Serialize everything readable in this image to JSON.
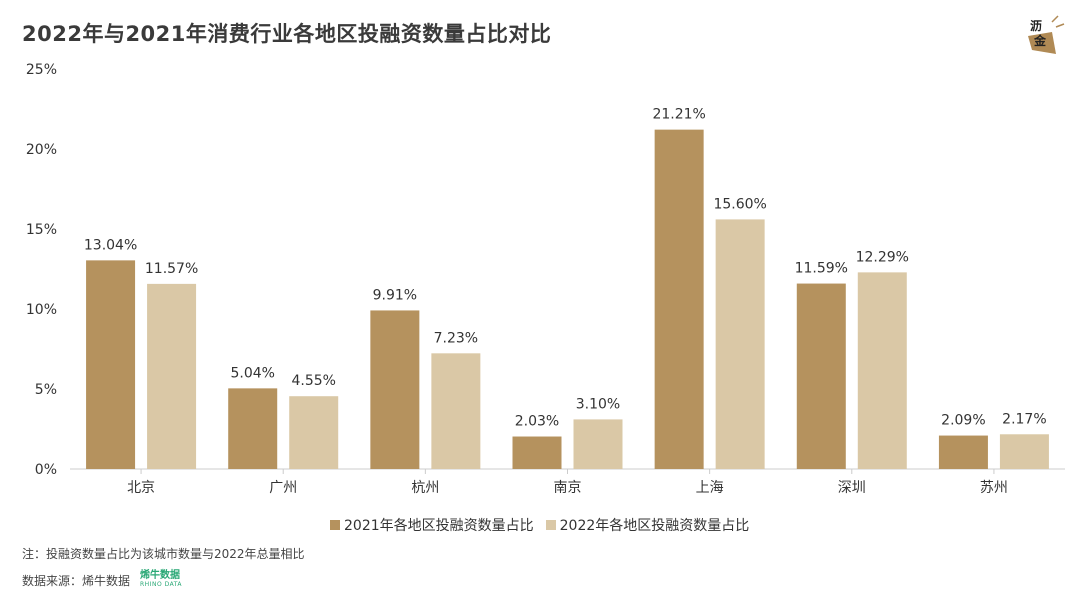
{
  "title": "2022年与2021年消费行业各地区投融资数量占比对比",
  "brand": {
    "line1": "沥",
    "line2": "金"
  },
  "colors": {
    "series1": "#b5925e",
    "series2": "#dac8a6",
    "axis": "#cccccc"
  },
  "chart_data": {
    "type": "bar",
    "categories": [
      "北京",
      "广州",
      "杭州",
      "南京",
      "上海",
      "深圳",
      "苏州"
    ],
    "series": [
      {
        "name": "2021年各地区投融资数量占比",
        "values": [
          13.04,
          5.04,
          9.91,
          2.03,
          21.21,
          11.59,
          2.09
        ]
      },
      {
        "name": "2022年各地区投融资数量占比",
        "values": [
          11.57,
          4.55,
          7.23,
          3.1,
          15.6,
          12.29,
          2.17
        ]
      }
    ],
    "data_labels": [
      [
        "13.04%",
        "5.04%",
        "9.91%",
        "2.03%",
        "21.21%",
        "11.59%",
        "2.09%"
      ],
      [
        "11.57%",
        "4.55%",
        "7.23%",
        "3.10%",
        "15.60%",
        "12.29%",
        "2.17%"
      ]
    ],
    "yticks": [
      "0%",
      "5%",
      "10%",
      "15%",
      "20%",
      "25%"
    ],
    "ylim": [
      0,
      25
    ],
    "grid": false,
    "legend": "bottom"
  },
  "legend": {
    "item1": "2021年各地区投融资数量占比",
    "item2": "2022年各地区投融资数量占比"
  },
  "note": "注：投融资数量占比为该城市数量与2022年总量相比",
  "source": "数据来源：烯牛数据",
  "rhino": {
    "cn": "烯牛数据",
    "en": "RHINO DATA"
  }
}
